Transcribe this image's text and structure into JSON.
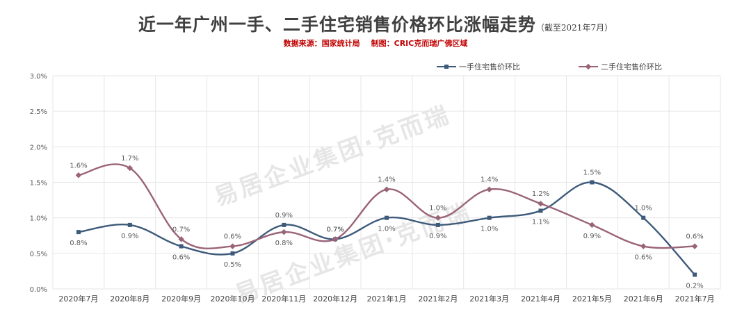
{
  "title": "近一年广州一手、二手住宅销售价格环比涨幅走势",
  "title_note": "（截至2021年7月）",
  "source": "数据来源：国家统计局",
  "made_by": "制图：CRIC克而瑞广佛区域",
  "watermark": "易居企业集团·克而瑞",
  "colors": {
    "series1": "#3d5a7a",
    "series2": "#9a6378",
    "grid": "#e6e6e6",
    "axis_text": "#595959"
  },
  "chart_data": {
    "type": "line",
    "categories": [
      "2020年7月",
      "2020年8月",
      "2020年9月",
      "2020年10月",
      "2020年11月",
      "2020年12月",
      "2021年1月",
      "2021年2月",
      "2021年3月",
      "2021年4月",
      "2021年5月",
      "2021年6月",
      "2021年7月"
    ],
    "ylim": [
      0,
      3.0
    ],
    "yticks": [
      "0.0%",
      "0.5%",
      "1.0%",
      "1.5%",
      "2.0%",
      "2.5%",
      "3.0%"
    ],
    "grid": true,
    "legend": "top-right",
    "series": [
      {
        "name": "一手住宅售价环比",
        "values": [
          0.8,
          0.9,
          0.6,
          0.5,
          0.9,
          0.7,
          1.0,
          0.9,
          1.0,
          1.1,
          1.5,
          1.0,
          0.2
        ],
        "labels": [
          "0.8%",
          "0.9%",
          "0.6%",
          "0.5%",
          "0.9%",
          "0.7%",
          "1.0%",
          "0.9%",
          "1.0%",
          "1.1%",
          "1.5%",
          "1.0%",
          "0.2%"
        ]
      },
      {
        "name": "二手住宅售价环比",
        "values": [
          1.6,
          1.7,
          0.7,
          0.6,
          0.8,
          0.7,
          1.4,
          1.0,
          1.4,
          1.2,
          0.9,
          0.6,
          0.6
        ],
        "labels": [
          "1.6%",
          "1.7%",
          "0.7%",
          "0.6%",
          "0.8%",
          "0.7%",
          "1.4%",
          "1.0%",
          "1.4%",
          "1.2%",
          "0.9%",
          "0.6%",
          "0.6%"
        ]
      }
    ]
  }
}
